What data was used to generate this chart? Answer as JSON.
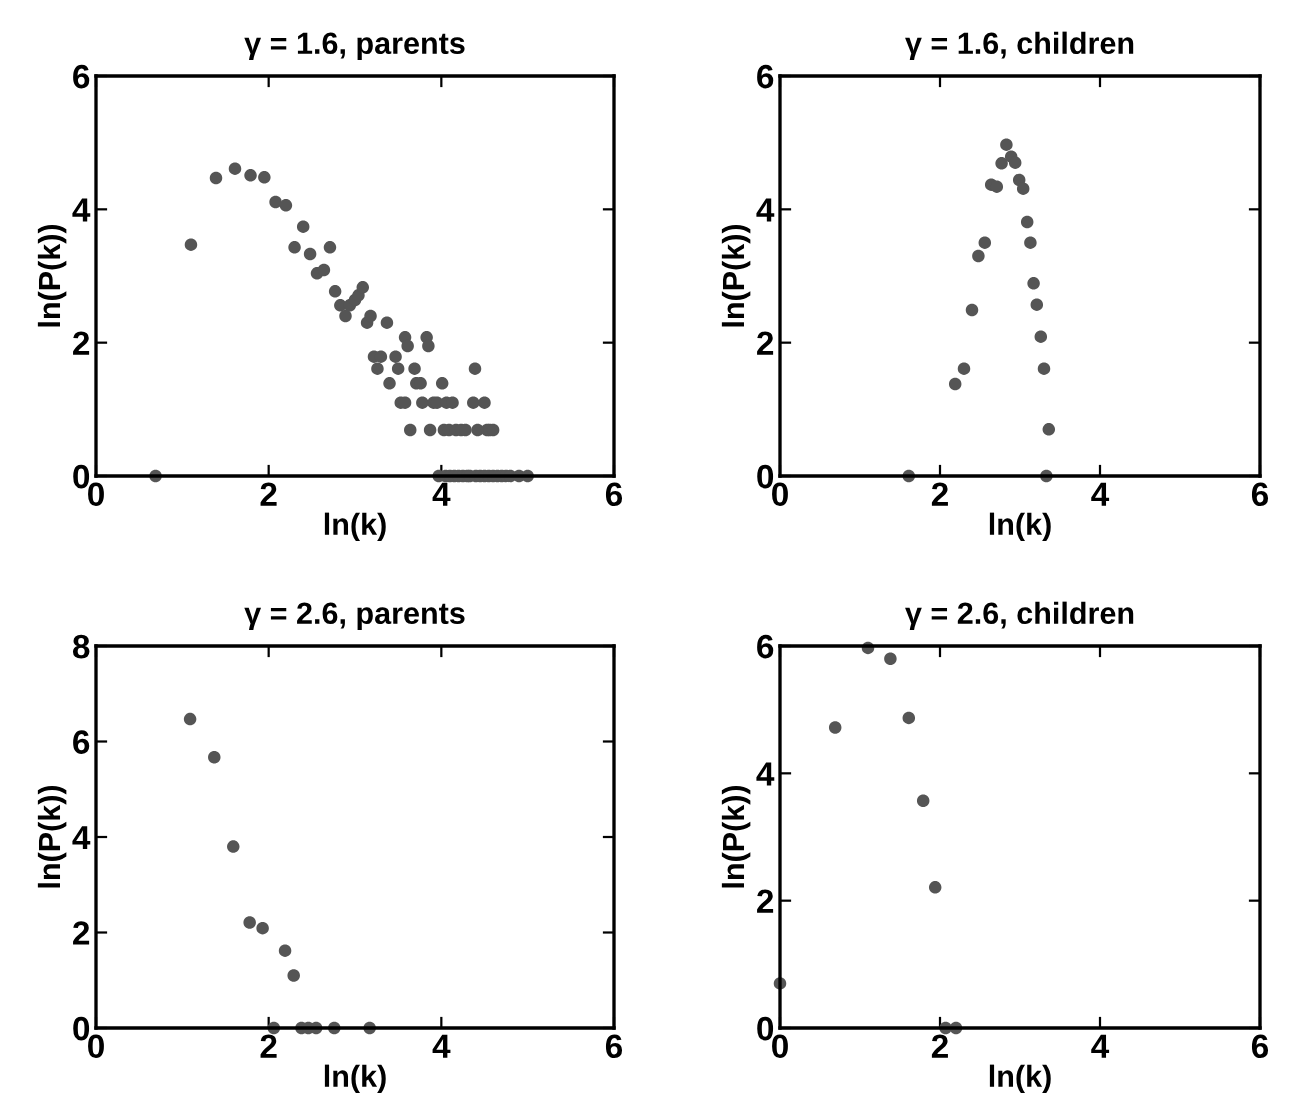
{
  "chart_data": [
    {
      "type": "scatter",
      "title": "γ = 1.6, parents",
      "xlabel": "ln(k)",
      "ylabel": "ln(P(k))",
      "xlim": [
        0,
        6
      ],
      "ylim": [
        0,
        6
      ],
      "xticks": [
        0,
        2,
        4,
        6
      ],
      "yticks": [
        0,
        2,
        4,
        6
      ],
      "marker": "circle",
      "grid": false,
      "legend": false,
      "series": [
        {
          "color": "#555555",
          "x": [
            0.69,
            1.1,
            1.39,
            1.61,
            1.79,
            1.95,
            2.08,
            2.2,
            2.3,
            2.4,
            2.48,
            2.56,
            2.64,
            2.71,
            2.77,
            2.83,
            2.89,
            2.94,
            3.0,
            3.04,
            3.09,
            3.14,
            3.18,
            3.22,
            3.26,
            3.3,
            3.37,
            3.4,
            3.47,
            3.5,
            3.53,
            3.58,
            3.58,
            3.61,
            3.64,
            3.69,
            3.71,
            3.76,
            3.78,
            3.83,
            3.85,
            3.87,
            3.91,
            3.95,
            3.97,
            4.01,
            4.03,
            4.05,
            4.06,
            4.09,
            4.1,
            4.13,
            4.15,
            4.17,
            4.2,
            4.23,
            4.25,
            4.28,
            4.3,
            4.33,
            4.37,
            4.39,
            4.4,
            4.42,
            4.45,
            4.5,
            4.5,
            4.53,
            4.55,
            4.56,
            4.6,
            4.6,
            4.65,
            4.7,
            4.75,
            4.8,
            4.9,
            5.0
          ],
          "values": [
            0,
            3.47,
            4.47,
            4.61,
            4.51,
            4.48,
            4.11,
            4.06,
            3.43,
            3.74,
            3.33,
            3.04,
            3.09,
            3.43,
            2.77,
            2.56,
            2.4,
            2.56,
            2.64,
            2.71,
            2.83,
            2.3,
            2.4,
            1.79,
            1.61,
            1.79,
            2.3,
            1.39,
            1.79,
            1.61,
            1.1,
            2.08,
            1.1,
            1.95,
            0.69,
            1.61,
            1.39,
            1.39,
            1.1,
            2.08,
            1.95,
            0.69,
            1.1,
            1.1,
            0,
            1.39,
            0.69,
            0,
            1.1,
            0.69,
            0,
            1.1,
            0,
            0.69,
            0,
            0.69,
            0,
            0.69,
            0,
            0,
            1.1,
            1.61,
            0,
            0.69,
            0,
            1.1,
            0,
            0.69,
            0,
            0.69,
            0.69,
            0,
            0,
            0,
            0,
            0,
            0,
            0
          ]
        }
      ]
    },
    {
      "type": "scatter",
      "title": "γ = 1.6, children",
      "xlabel": "ln(k)",
      "ylabel": "ln(P(k))",
      "xlim": [
        0,
        6
      ],
      "ylim": [
        0,
        6
      ],
      "xticks": [
        0,
        2,
        4,
        6
      ],
      "yticks": [
        0,
        2,
        4,
        6
      ],
      "marker": "circle",
      "grid": false,
      "legend": false,
      "series": [
        {
          "color": "#555555",
          "x": [
            1.61,
            2.19,
            2.3,
            2.4,
            2.48,
            2.56,
            2.64,
            2.71,
            2.77,
            2.83,
            2.89,
            2.94,
            2.99,
            3.04,
            3.09,
            3.13,
            3.17,
            3.21,
            3.26,
            3.3,
            3.36,
            3.33
          ],
          "values": [
            0,
            1.38,
            1.61,
            2.49,
            3.3,
            3.5,
            4.37,
            4.34,
            4.69,
            4.97,
            4.79,
            4.7,
            4.44,
            4.31,
            3.81,
            3.5,
            2.89,
            2.57,
            2.09,
            1.61,
            0.7,
            0
          ]
        }
      ]
    },
    {
      "type": "scatter",
      "title": "γ = 2.6, parents",
      "xlabel": "ln(k)",
      "ylabel": "ln(P(k))",
      "xlim": [
        0,
        6
      ],
      "ylim": [
        0,
        8
      ],
      "xticks": [
        0,
        2,
        4,
        6
      ],
      "yticks": [
        0,
        2,
        4,
        6,
        8
      ],
      "marker": "circle",
      "grid": false,
      "legend": false,
      "series": [
        {
          "color": "#555555",
          "x": [
            1.09,
            1.37,
            1.59,
            1.78,
            1.93,
            2.06,
            2.19,
            2.29,
            2.38,
            2.46,
            2.55,
            2.76,
            3.17
          ],
          "values": [
            6.47,
            5.67,
            3.8,
            2.21,
            2.09,
            0,
            1.62,
            1.1,
            0,
            0,
            0,
            0,
            0
          ]
        }
      ]
    },
    {
      "type": "scatter",
      "title": "γ = 2.6, children",
      "xlabel": "ln(k)",
      "ylabel": "ln(P(k))",
      "xlim": [
        0,
        6
      ],
      "ylim": [
        0,
        6
      ],
      "xticks": [
        0,
        2,
        4,
        6
      ],
      "yticks": [
        0,
        2,
        4,
        6
      ],
      "marker": "circle",
      "grid": false,
      "legend": false,
      "series": [
        {
          "color": "#555555",
          "x": [
            0,
            0.69,
            1.1,
            1.38,
            1.61,
            1.79,
            1.94,
            2.07,
            2.2
          ],
          "values": [
            0.7,
            4.72,
            5.97,
            5.8,
            4.87,
            3.57,
            2.21,
            0,
            0
          ]
        }
      ]
    }
  ]
}
